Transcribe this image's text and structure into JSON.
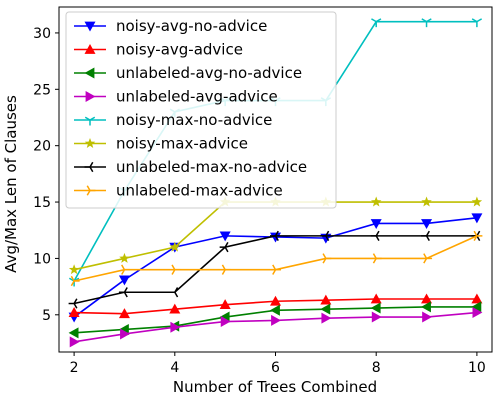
{
  "chart_data": {
    "type": "line",
    "title": "",
    "xlabel": "Number of Trees Combined",
    "ylabel": "Avg/Max Len of Clauses",
    "xlim": [
      1.7,
      10.3
    ],
    "ylim": [
      1.7,
      32.3
    ],
    "xticks": [
      2,
      4,
      6,
      8,
      10
    ],
    "yticks": [
      5,
      10,
      15,
      20,
      25,
      30
    ],
    "grid": false,
    "legend_position": "upper-left",
    "x": [
      2,
      3,
      4,
      5,
      6,
      7,
      8,
      9,
      10
    ],
    "series": [
      {
        "name": "noisy-avg-no-advice",
        "color": "#0000ff",
        "marker": "triangle-down",
        "values": [
          4.8,
          8.1,
          11.0,
          12.0,
          11.9,
          11.8,
          13.1,
          13.1,
          13.6
        ]
      },
      {
        "name": "noisy-avg-advice",
        "color": "#ff0000",
        "marker": "triangle-up",
        "values": [
          5.2,
          5.1,
          5.5,
          5.9,
          6.2,
          6.3,
          6.4,
          6.4,
          6.4
        ]
      },
      {
        "name": "unlabeled-avg-no-advice",
        "color": "#008000",
        "marker": "triangle-left",
        "values": [
          3.4,
          3.7,
          4.0,
          4.8,
          5.4,
          5.5,
          5.6,
          5.7,
          5.7
        ]
      },
      {
        "name": "unlabeled-avg-advice",
        "color": "#c000c0",
        "marker": "triangle-right",
        "values": [
          2.6,
          3.3,
          3.9,
          4.4,
          4.5,
          4.7,
          4.8,
          4.8,
          5.2
        ]
      },
      {
        "name": "noisy-max-no-advice",
        "color": "#00bfbf",
        "marker": "tri-down",
        "values": [
          8.0,
          16.0,
          23.0,
          24.0,
          24.0,
          24.0,
          31.0,
          31.0,
          31.0
        ]
      },
      {
        "name": "noisy-max-advice",
        "color": "#bfbf00",
        "marker": "star",
        "values": [
          9.0,
          10.0,
          11.0,
          15.0,
          15.0,
          15.0,
          15.0,
          15.0,
          15.0
        ]
      },
      {
        "name": "unlabeled-max-no-advice",
        "color": "#000000",
        "marker": "tri-left",
        "values": [
          6.0,
          7.0,
          7.0,
          11.0,
          12.0,
          12.0,
          12.0,
          12.0,
          12.0
        ]
      },
      {
        "name": "unlabeled-max-advice",
        "color": "#ffa500",
        "marker": "tri-right",
        "values": [
          8.0,
          9.0,
          9.0,
          9.0,
          9.0,
          10.0,
          10.0,
          10.0,
          12.0
        ]
      }
    ]
  }
}
